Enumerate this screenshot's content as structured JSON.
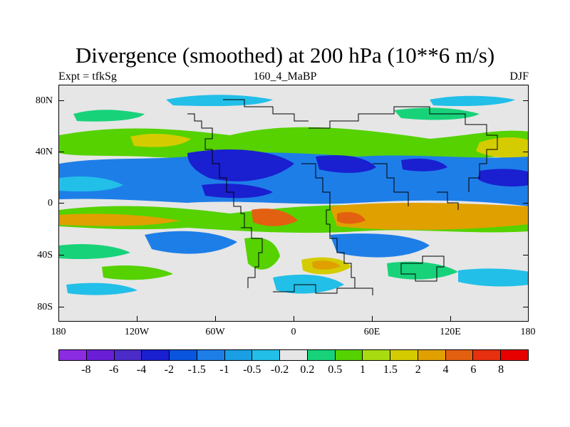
{
  "title": "Divergence (smoothed) at 200 hPa (10**6 m/s)",
  "subtitle_left": "Expt = tfkSg",
  "subtitle_center": "160_4_MaBP",
  "subtitle_right": "DJF",
  "lat_labels": [
    "80N",
    "40N",
    "0",
    "40S",
    "80S"
  ],
  "lon_labels": [
    "180",
    "120W",
    "60W",
    "0",
    "60E",
    "120E",
    "180"
  ],
  "legend": {
    "labels": [
      "-8",
      "-6",
      "-4",
      "-2",
      "-1.5",
      "-1",
      "-0.5",
      "-0.2",
      "0.2",
      "0.5",
      "1",
      "1.5",
      "2",
      "4",
      "6",
      "8"
    ],
    "colors": [
      "#8b2be2",
      "#6a1fd6",
      "#4b2cc8",
      "#1a1fd0",
      "#0a55dd",
      "#1e7ee8",
      "#1a9ee4",
      "#22bfe8",
      "#e6e6e6",
      "#18d27a",
      "#55d200",
      "#a8dc10",
      "#d4cc00",
      "#e0a000",
      "#e36010",
      "#e63010",
      "#e60000"
    ]
  },
  "colors": {
    "strong_neg": "#1a1fd0",
    "mid_neg": "#1e7ee8",
    "weak_neg": "#22bfe8",
    "neutral": "#e6e6e6",
    "weak_pos": "#18d27a",
    "mid_pos": "#55d200",
    "pos": "#d4cc00",
    "strong_pos": "#e0a000",
    "max_pos": "#e36010"
  }
}
